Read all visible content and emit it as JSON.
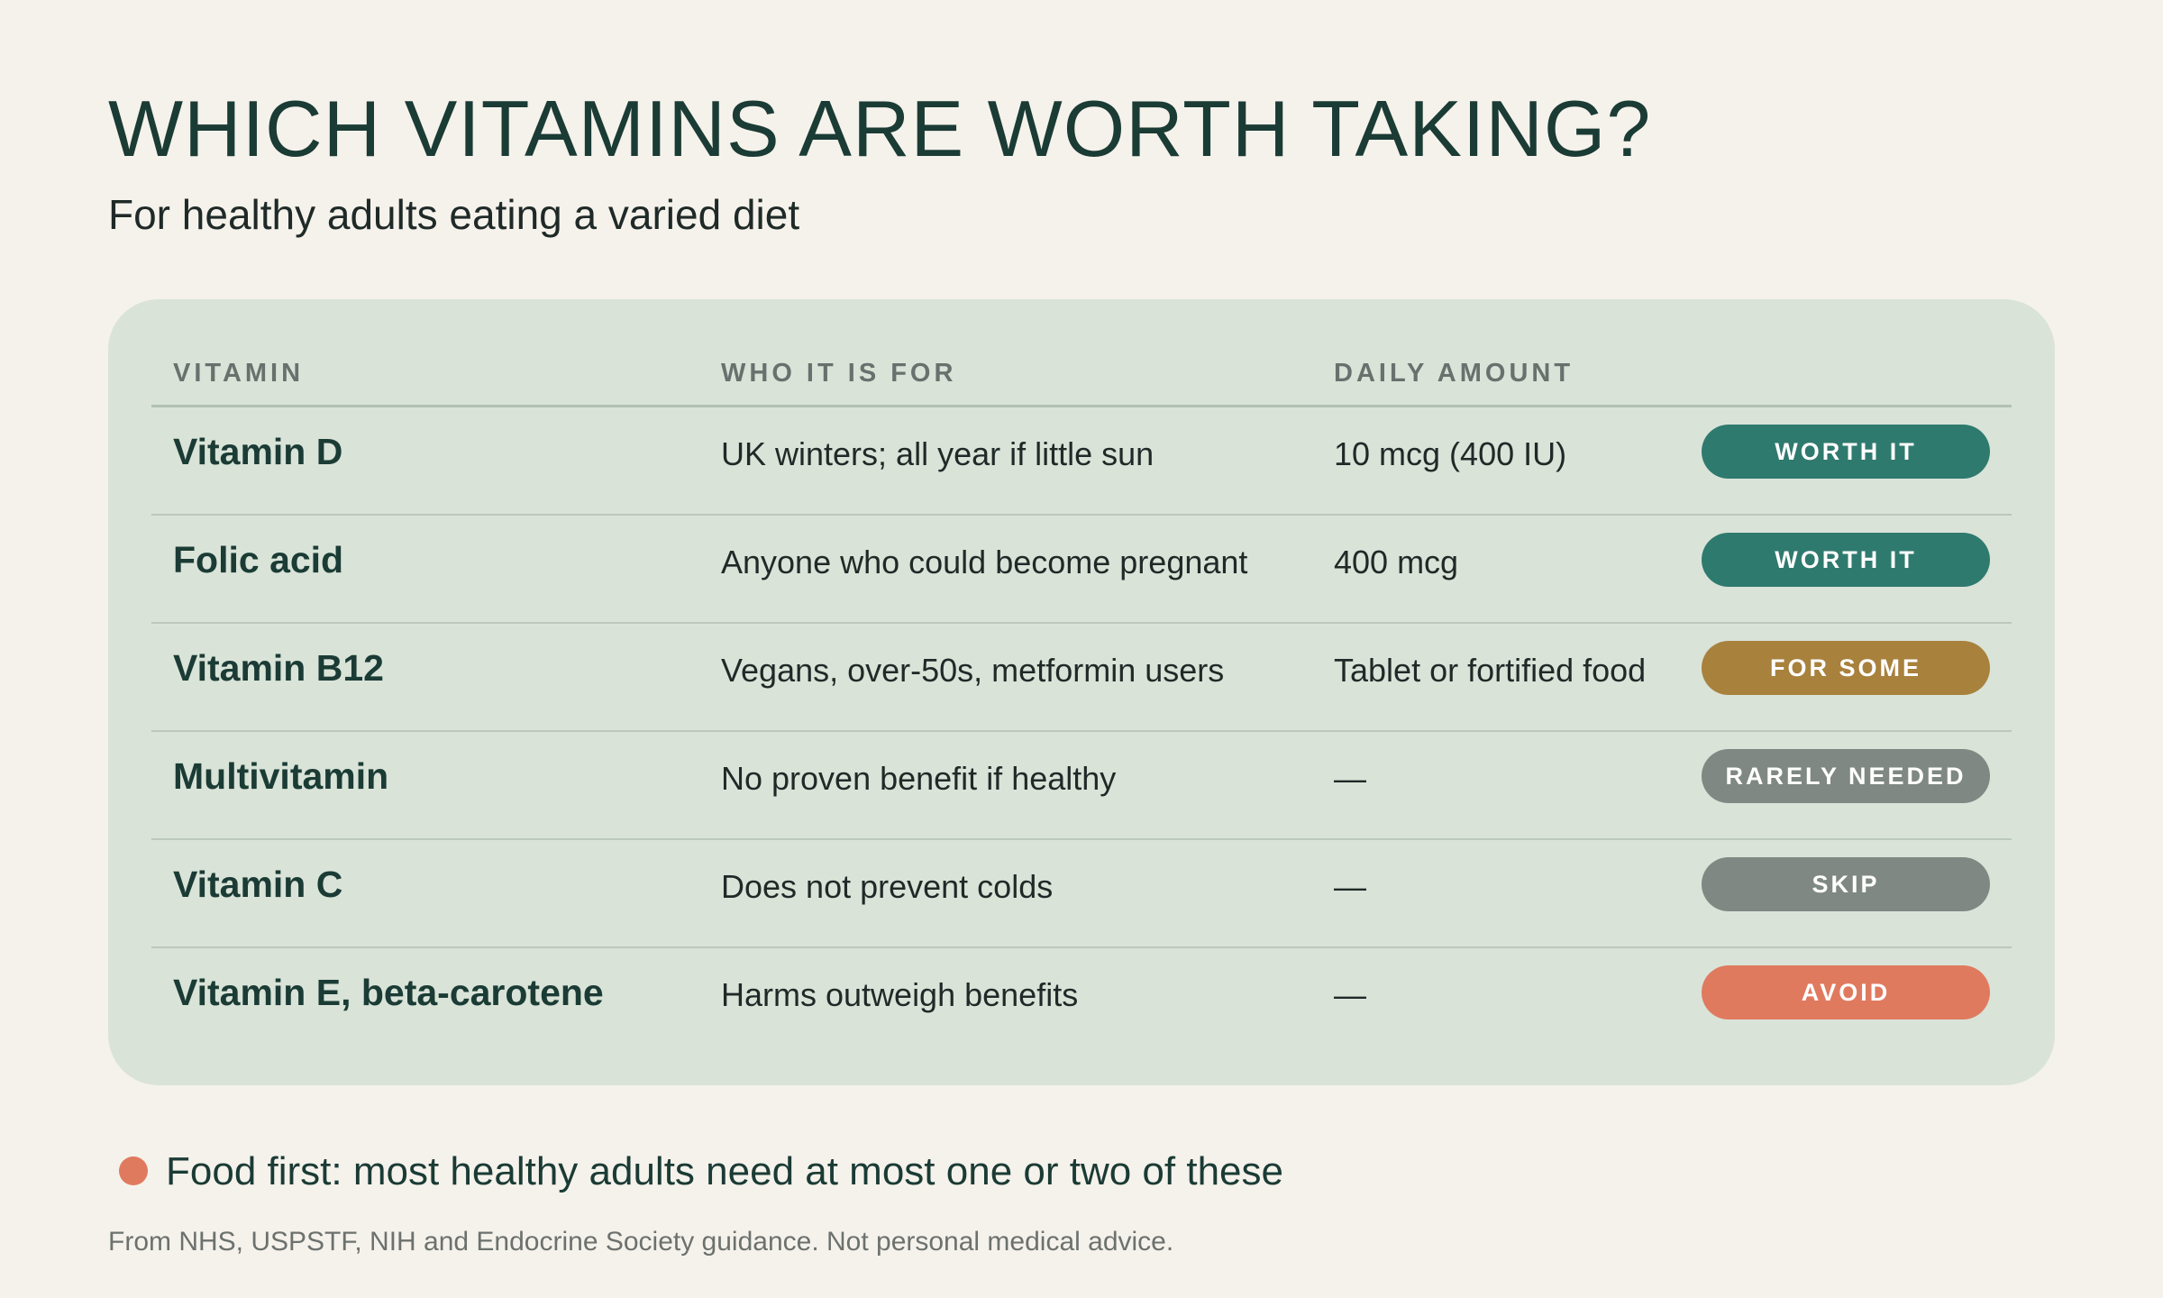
{
  "header": {
    "title": "WHICH VITAMINS ARE WORTH TAKING?",
    "subtitle": "For healthy adults eating a varied diet"
  },
  "table": {
    "columns": [
      "VITAMIN",
      "WHO IT IS FOR",
      "DAILY AMOUNT"
    ],
    "rows": [
      {
        "name": "Vitamin D",
        "who": "UK winters; all year if little sun",
        "amount": "10 mcg (400 IU)",
        "verdict": "WORTH IT",
        "color": "#2f7a6e"
      },
      {
        "name": "Folic acid",
        "who": "Anyone who could become pregnant",
        "amount": "400 mcg",
        "verdict": "WORTH IT",
        "color": "#2f7a6e"
      },
      {
        "name": "Vitamin B12",
        "who": "Vegans, over-50s, metformin users",
        "amount": "Tablet or fortified food",
        "verdict": "FOR SOME",
        "color": "#a8813d"
      },
      {
        "name": "Multivitamin",
        "who": "No proven benefit if healthy",
        "amount": "—",
        "verdict": "RARELY NEEDED",
        "color": "#7f8883"
      },
      {
        "name": "Vitamin C",
        "who": "Does not prevent colds",
        "amount": "—",
        "verdict": "SKIP",
        "color": "#7f8883"
      },
      {
        "name": "Vitamin E, beta-carotene",
        "who": "Harms outweigh benefits",
        "amount": "—",
        "verdict": "AVOID",
        "color": "#e07a5f"
      }
    ]
  },
  "footer": {
    "note": "Food first: most healthy adults need at most one or two of these",
    "note_dot_color": "#e07a5f",
    "source": "From NHS, USPSTF, NIH and Endocrine Society guidance. Not personal medical advice."
  }
}
